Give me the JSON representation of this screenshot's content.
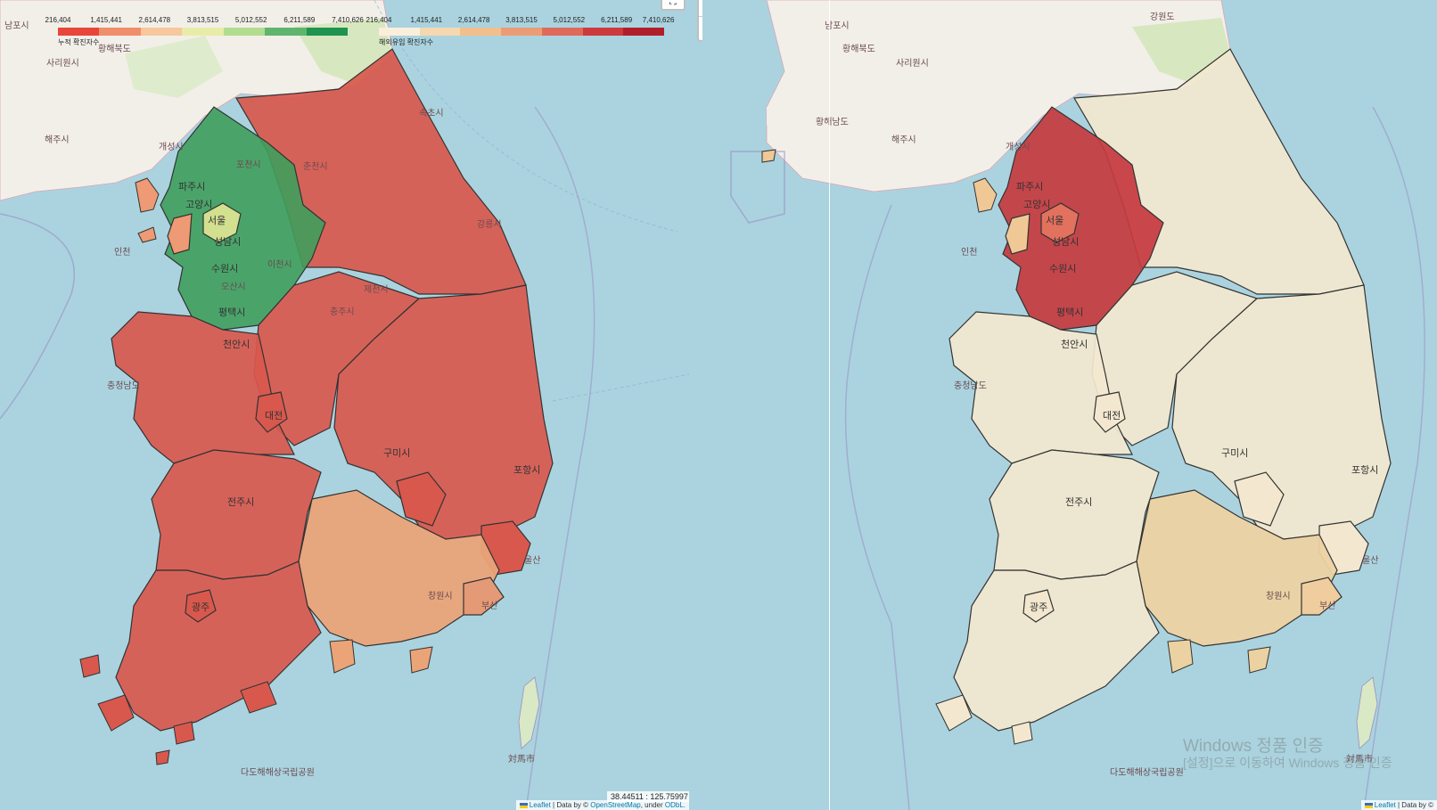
{
  "legend_left": {
    "ticks": [
      "216,404",
      "1,415,441",
      "2,614,478",
      "3,813,515",
      "5,012,552",
      "6,211,589",
      "7,410,626"
    ],
    "caption": "누적 확진자수",
    "colors": [
      "#e8463b",
      "#f08d6a",
      "#f7c79e",
      "#e8eca8",
      "#b2dc8f",
      "#5fb56e",
      "#1e9450"
    ]
  },
  "legend_right": {
    "ticks": [
      "216,404",
      "1,415,441",
      "2,614,478",
      "3,813,515",
      "5,012,552",
      "6,211,589",
      "7,410,626"
    ],
    "caption": "해외유입 확진자수",
    "colors": [
      "#fbeeda",
      "#f5d8b0",
      "#f2bf8c",
      "#ec9c74",
      "#e06a5a",
      "#cc3a3e",
      "#b01e2c"
    ]
  },
  "zoom": {
    "in": "+",
    "out": "−"
  },
  "fullscreen_label": "⛶",
  "coordinates": "38.44511 : 125.75997",
  "attribution_left": {
    "leaflet": "Leaflet",
    "middle": " | Data by © ",
    "osm": "OpenStreetMap",
    "under": ", under ",
    "odbl": "ODbL."
  },
  "attribution_right": {
    "leaflet": "Leaflet",
    "middle": " | Data by ©"
  },
  "watermark": {
    "line1": "Windows 정품 인증",
    "line2": "[설정]으로 이동하여 Windows 정품 인증"
  },
  "map_labels": {
    "nampo": "남포시",
    "hwanghae": "황해북도",
    "sariwon": "사리원시",
    "haeju": "해주시",
    "kaesong": "개성시",
    "gangwon_n": "강원도",
    "incheon": "인천",
    "paju": "파주시",
    "goyang": "고양시",
    "seoul": "서울",
    "seongnam": "성남시",
    "suwon": "수원시",
    "pyeongtaek": "평택시",
    "icheon": "이천시",
    "osan": "오산시",
    "pocheon": "포천시",
    "chuncheon": "춘천시",
    "gangneung": "강릉시",
    "chungju": "충주시",
    "jecheon": "제천시",
    "cheonan": "천안시",
    "chungnam": "충청남도",
    "daejeon": "대전",
    "gumi": "구미시",
    "pohang": "포항시",
    "jeonju": "전주시",
    "gwangju": "광주",
    "changwon": "창원시",
    "busan": "부산",
    "ulsan": "울산",
    "tsushima": "対馬市",
    "dadohae": "다도해해상국립공원",
    "hwanghaenamdo": "황해남도",
    "sokcho": "속초시"
  },
  "regions_left_colors": {
    "gyeonggi": "#3f9e5c",
    "seoul": "#d2e08f",
    "incheon": "#ee9a74",
    "gyeongnam": "#eaa478",
    "others": "#d9584d",
    "busan": "#e59a77"
  },
  "regions_right_colors": {
    "gyeonggi": "#c63a3e",
    "seoul": "#e2715d",
    "incheon": "#f0c896",
    "gyeongnam": "#ecd2a2",
    "others": "#f3e8cf",
    "busan": "#efcd9e"
  }
}
